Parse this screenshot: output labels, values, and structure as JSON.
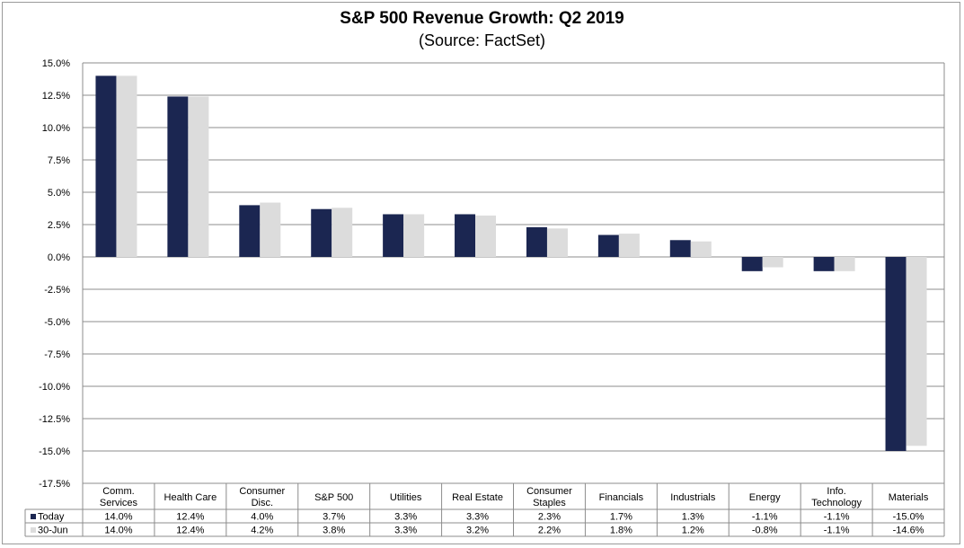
{
  "chart_data": {
    "type": "bar",
    "title": "S&P 500 Revenue Growth: Q2 2019",
    "subtitle": "(Source: FactSet)",
    "xlabel": "",
    "ylabel": "",
    "ylim": [
      -17.5,
      15.0
    ],
    "ytick_step": 2.5,
    "grid": true,
    "categories": [
      [
        "Comm.",
        "Services"
      ],
      [
        "Health Care"
      ],
      [
        "Consumer",
        "Disc."
      ],
      [
        "S&P 500"
      ],
      [
        "Utilities"
      ],
      [
        "Real Estate"
      ],
      [
        "Consumer",
        "Staples"
      ],
      [
        "Financials"
      ],
      [
        "Industrials"
      ],
      [
        "Energy"
      ],
      [
        "Info.",
        "Technology"
      ],
      [
        "Materials"
      ]
    ],
    "series": [
      {
        "name": "Today",
        "color": "#1b2651",
        "values": [
          14.0,
          12.4,
          4.0,
          3.7,
          3.3,
          3.3,
          2.3,
          1.7,
          1.3,
          -1.1,
          -1.1,
          -15.0
        ],
        "labels": [
          "14.0%",
          "12.4%",
          "4.0%",
          "3.7%",
          "3.3%",
          "3.3%",
          "2.3%",
          "1.7%",
          "1.3%",
          "-1.1%",
          "-1.1%",
          "-15.0%"
        ]
      },
      {
        "name": "30-Jun",
        "color": "#dcdcdc",
        "values": [
          14.0,
          12.4,
          4.2,
          3.8,
          3.3,
          3.2,
          2.2,
          1.8,
          1.2,
          -0.8,
          -1.1,
          -14.6
        ],
        "labels": [
          "14.0%",
          "12.4%",
          "4.2%",
          "3.8%",
          "3.3%",
          "3.2%",
          "2.2%",
          "1.8%",
          "1.2%",
          "-0.8%",
          "-1.1%",
          "-14.6%"
        ]
      }
    ],
    "legend_placement": "data-table-left"
  }
}
